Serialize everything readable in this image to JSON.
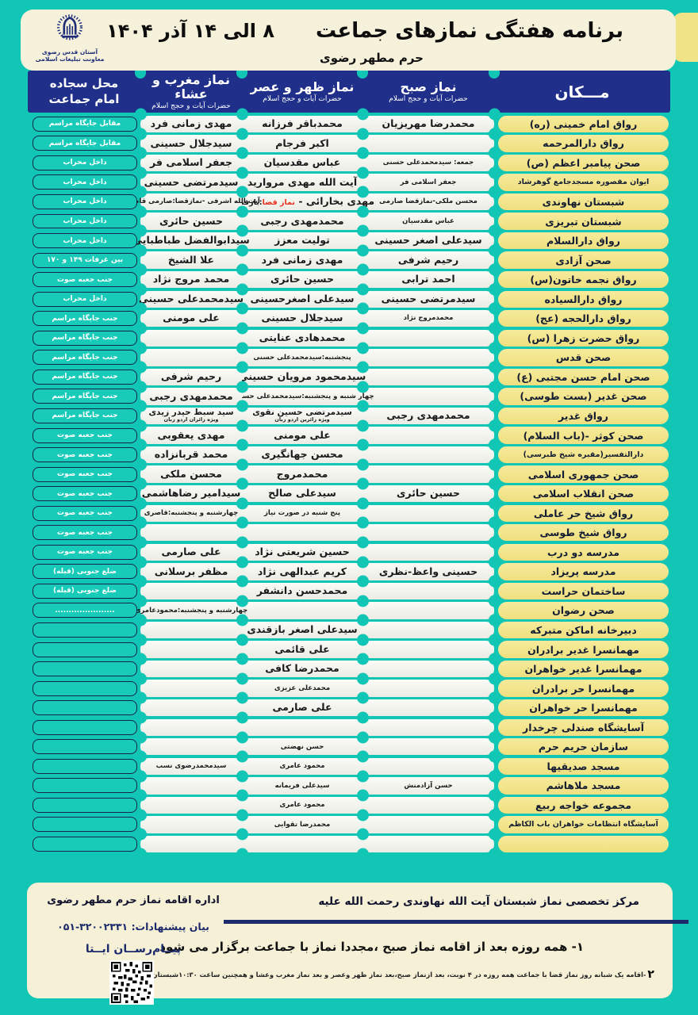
{
  "colors": {
    "teal": "#12c6b5",
    "navy": "#20308a",
    "yellow": "#f0e387",
    "cream": "#f6f1da",
    "red": "#e8321e"
  },
  "banner": {
    "title": "برنامه هفتگی نمازهای جماعت",
    "date_range": "۸ الی ۱۴ آذر ۱۴۰۴",
    "subtitle": "حرم مطهر رضوی",
    "logo_line1": "آستان قدس رضوی",
    "logo_line2": "معاونت تبلیغات اسلامی"
  },
  "columns": {
    "place": "مـــکان",
    "morning_title": "نماز صبح",
    "noon_title": "نماز ظهر و عصر",
    "evening_title": "نماز مغرب و عشاء",
    "clergy_subtitle": "حضرات آیات و حجج اسلام",
    "spot_line1": "محل سجاده",
    "spot_line2": "امام جماعت"
  },
  "rows": [
    {
      "place": "رواق امام خمینی (ره)",
      "morning": "محمدرضا مهریزیان",
      "noon": "محمدباقر فرزانه",
      "evening": "مهدی زمانی فرد",
      "spot": "مقابل جایگاه مراسم"
    },
    {
      "place": "رواق دارالمرحمه",
      "noon": "اکبر فرجام",
      "evening": "سیدجلال حسینی",
      "spot": "مقابل جایگاه مراسم"
    },
    {
      "place": "صحن پیامبر اعظم (ص)",
      "morning": "جمعه: سیدمحمدعلی حسنی",
      "morning_small": true,
      "noon": "عباس مقدسیان",
      "evening": "جعفر اسلامی فر",
      "spot": "داخل محراب"
    },
    {
      "place": "ایوان مقصوره مسجدجامع گوهرشاد",
      "morning": "جعفر اسلامی فر",
      "morning_small": true,
      "noon": "آیت الله مهدی مروارید",
      "evening": "سیدمرتضی حسینی",
      "spot": "داخل محراب"
    },
    {
      "place": "شبستان نهاوندی",
      "morning": "محسن ملکی-نمازقضا صارمی",
      "morning_small": true,
      "noon_red_parts": {
        "pre": "مهدی بخارائی - ",
        "red": "نماز قضا",
        "post": ":بازقندی"
      },
      "evening": "آیت الله اشرفی -نمازقضا:صارمی قاصری",
      "evening_small": true,
      "spot": "داخل محراب"
    },
    {
      "place": "شبستان تبریزی",
      "morning": "عباس مقدسیان",
      "morning_small": true,
      "noon": "محمدمهدی رجبی",
      "evening": "حسین حائری",
      "spot": "داخل محراب"
    },
    {
      "place": "رواق دارالسلام",
      "morning": "سیدعلی اصغر حسینی",
      "noon": "تولیت معزز",
      "evening": "سیدابوالفضل طباطبایی",
      "spot": "داخل محراب"
    },
    {
      "place": "صحن آزادی",
      "morning": "رحیم شرفی",
      "noon": "مهدی زمانی فرد",
      "evening": "علا الشیخ",
      "spot": "بین غرفات ۱۴۹ و ۱۷۰"
    },
    {
      "place": "رواق نجمه خاتون(س)",
      "morning": "احمد ترابی",
      "noon": "حسین حائری",
      "evening": "محمد مروج نژاد",
      "spot": "جنب جعبه صوت"
    },
    {
      "place": "رواق دارالسیاده",
      "morning": "سیدمرتضی حسینی",
      "noon": "سیدعلی اصغرحسینی",
      "evening": "سیدمحمدعلی حسینی",
      "spot": "داخل محراب"
    },
    {
      "place": "رواق دارالحجه (عج)",
      "morning": "محمدمروج نژاد",
      "morning_small": true,
      "noon": "سیدجلال حسینی",
      "evening": "علی مومنی",
      "spot": "جنب جایگاه مراسم"
    },
    {
      "place": "رواق حضرت زهرا (س)",
      "noon": "محمدهادی عنایتی",
      "spot": "جنب جایگاه مراسم"
    },
    {
      "place": "صحن قدس",
      "noon": "پنجشنبه:سیدمحمدعلی حسنی",
      "noon_small": true,
      "spot": "جنب جایگاه مراسم"
    },
    {
      "place": "صحن امام حسن مجتبی (ع)",
      "noon": "سیدمحمود مرویان حسینی",
      "evening": "رحیم شرفی",
      "spot": "جنب جایگاه مراسم"
    },
    {
      "place": "صحن غدیر (بست طوسی)",
      "noon": "چهار شنبه و پنجشنبه:سیدمحمدعلی حسینی",
      "noon_small": true,
      "evening": "محمدمهدی رجبی",
      "spot": "جنب جایگاه مراسم"
    },
    {
      "place": "رواق غدیر",
      "morning": "محمدمهدی رجبی",
      "noon": "سیدمرتضی حسین نقوی",
      "noon_sub": "ویژه زائرین اردو زبان",
      "evening": "سید سبط حیدر زیدی",
      "evening_sub": "ویژه زائران اردو زبان",
      "spot": "جنب جایگاه مراسم"
    },
    {
      "place": "صحن کوثر -(باب السلام)",
      "noon": "علی مومنی",
      "evening": "مهدی یعقوبی",
      "spot": "جنب جعبه صوت"
    },
    {
      "place": "دارالتفسیر(مقبره شیخ طبرسی)",
      "noon": "محسن جهانگیری",
      "evening": "محمد قربانزاده",
      "spot": "جنب جعبه صوت"
    },
    {
      "place": "صحن جمهوری اسلامی",
      "noon": "محمدمروج",
      "evening": "محسن ملکی",
      "spot": "جنب جعبه صوت"
    },
    {
      "place": "صحن انقلاب اسلامی",
      "morning": "حسین حائری",
      "noon": "سیدعلی صالح",
      "evening": "سیدامیر رضاهاشمی",
      "spot": "جنب جعبه صوت"
    },
    {
      "place": "رواق شیخ حر عاملی",
      "noon": "پنج شنبه در صورت نیاز",
      "noon_small": true,
      "evening": "چهارشنبه و پنجشنبه:قاصری",
      "evening_small": true,
      "spot": "جنب جعبه صوت"
    },
    {
      "place": "رواق شیخ طوسی",
      "spot": "جنب جعبه صوت"
    },
    {
      "place": "مدرسه دو درب",
      "noon": "حسین شریعتی نژاد",
      "evening": "علی صارمی",
      "spot": "جنب جعبه صوت"
    },
    {
      "place": "مدرسه پریزاد",
      "morning": "حسینی واعظ-نظری",
      "noon": "کریم عبدالهی نژاد",
      "evening": "مظفر برسلانی",
      "spot": "ضلع جنوبی (قبله)"
    },
    {
      "place": "ساختمان حراست",
      "noon": "محمدحسن دانشفر",
      "spot": "ضلع جنوبی (قبله)"
    },
    {
      "place": "صحن رضوان",
      "evening": "چهارشنبه و پنجشنبه:محمودعامری",
      "evening_small": true,
      "spot": "......................"
    },
    {
      "place": "دبیرخانه اماکن متبرکه",
      "noon": "سیدعلی اصغر بازقندی",
      "spot": ""
    },
    {
      "place": "مهمانسرا غدیر برادران",
      "noon": "علی قائمی",
      "spot": ""
    },
    {
      "place": "مهمانسرا غدیر خواهران",
      "noon": "محمدرضا کافی",
      "spot": ""
    },
    {
      "place": "مهمانسرا حر برادران",
      "noon": "محمدعلی عزیزی",
      "noon_small": true,
      "spot": ""
    },
    {
      "place": "مهمانسرا حر خواهران",
      "noon": "علی صارمی",
      "spot": ""
    },
    {
      "place": "آسایشگاه صندلی چرخدار",
      "spot": ""
    },
    {
      "place": "سازمان حریم حرم",
      "noon": "حسن نهضتی",
      "noon_small": true,
      "spot": ""
    },
    {
      "place": "مسجد صدیقیها",
      "noon": "محمود عامری",
      "noon_small": true,
      "evening": "سیدمحمدرضوی نسب",
      "evening_small": true,
      "spot": ""
    },
    {
      "place": "مسجد ملاهاشم",
      "morning": "حسن آزادمنش",
      "morning_small": true,
      "noon": "سیدعلی فریمانه",
      "noon_small": true,
      "spot": ""
    },
    {
      "place": "مجموعه خواجه ربیع",
      "noon": "محمود عامری",
      "noon_small": true,
      "spot": ""
    },
    {
      "place": "آسایشگاه انتظامات خواهران باب الکاظم",
      "noon": "محمدرضا تقوایی",
      "noon_small": true,
      "spot": ""
    },
    {
      "place": "",
      "spot": ""
    }
  ],
  "footer": {
    "center_name": "مرکز تخصصی نماز شبستان آیت الله نهاوندی   رحمت  الله  علیه",
    "note1": "۱- همه روزه بعد از اقامه نماز صبح ،مجددا نماز با جماعت برگزار می شود",
    "note2_num": "۲",
    "note2": "-اقامه یک شبانه روز نماز قضا با جماعت همه روزه در ۴ نوبت، بعد ازنماز صبح،بعد نماز ظهر وعصر و بعد نماز مغرب وعشا و همچنین ساعت ۱۰:۳۰شبستان تبریزی",
    "office": "اداره اقامه نماز حرم مطهر رضوی",
    "suggestions_label": "بیان پیشنهادات:",
    "phone": "۰۵۱-۳۲۰۰۲۳۳۱",
    "messenger": "پیــام‌رســان ایــتا"
  }
}
